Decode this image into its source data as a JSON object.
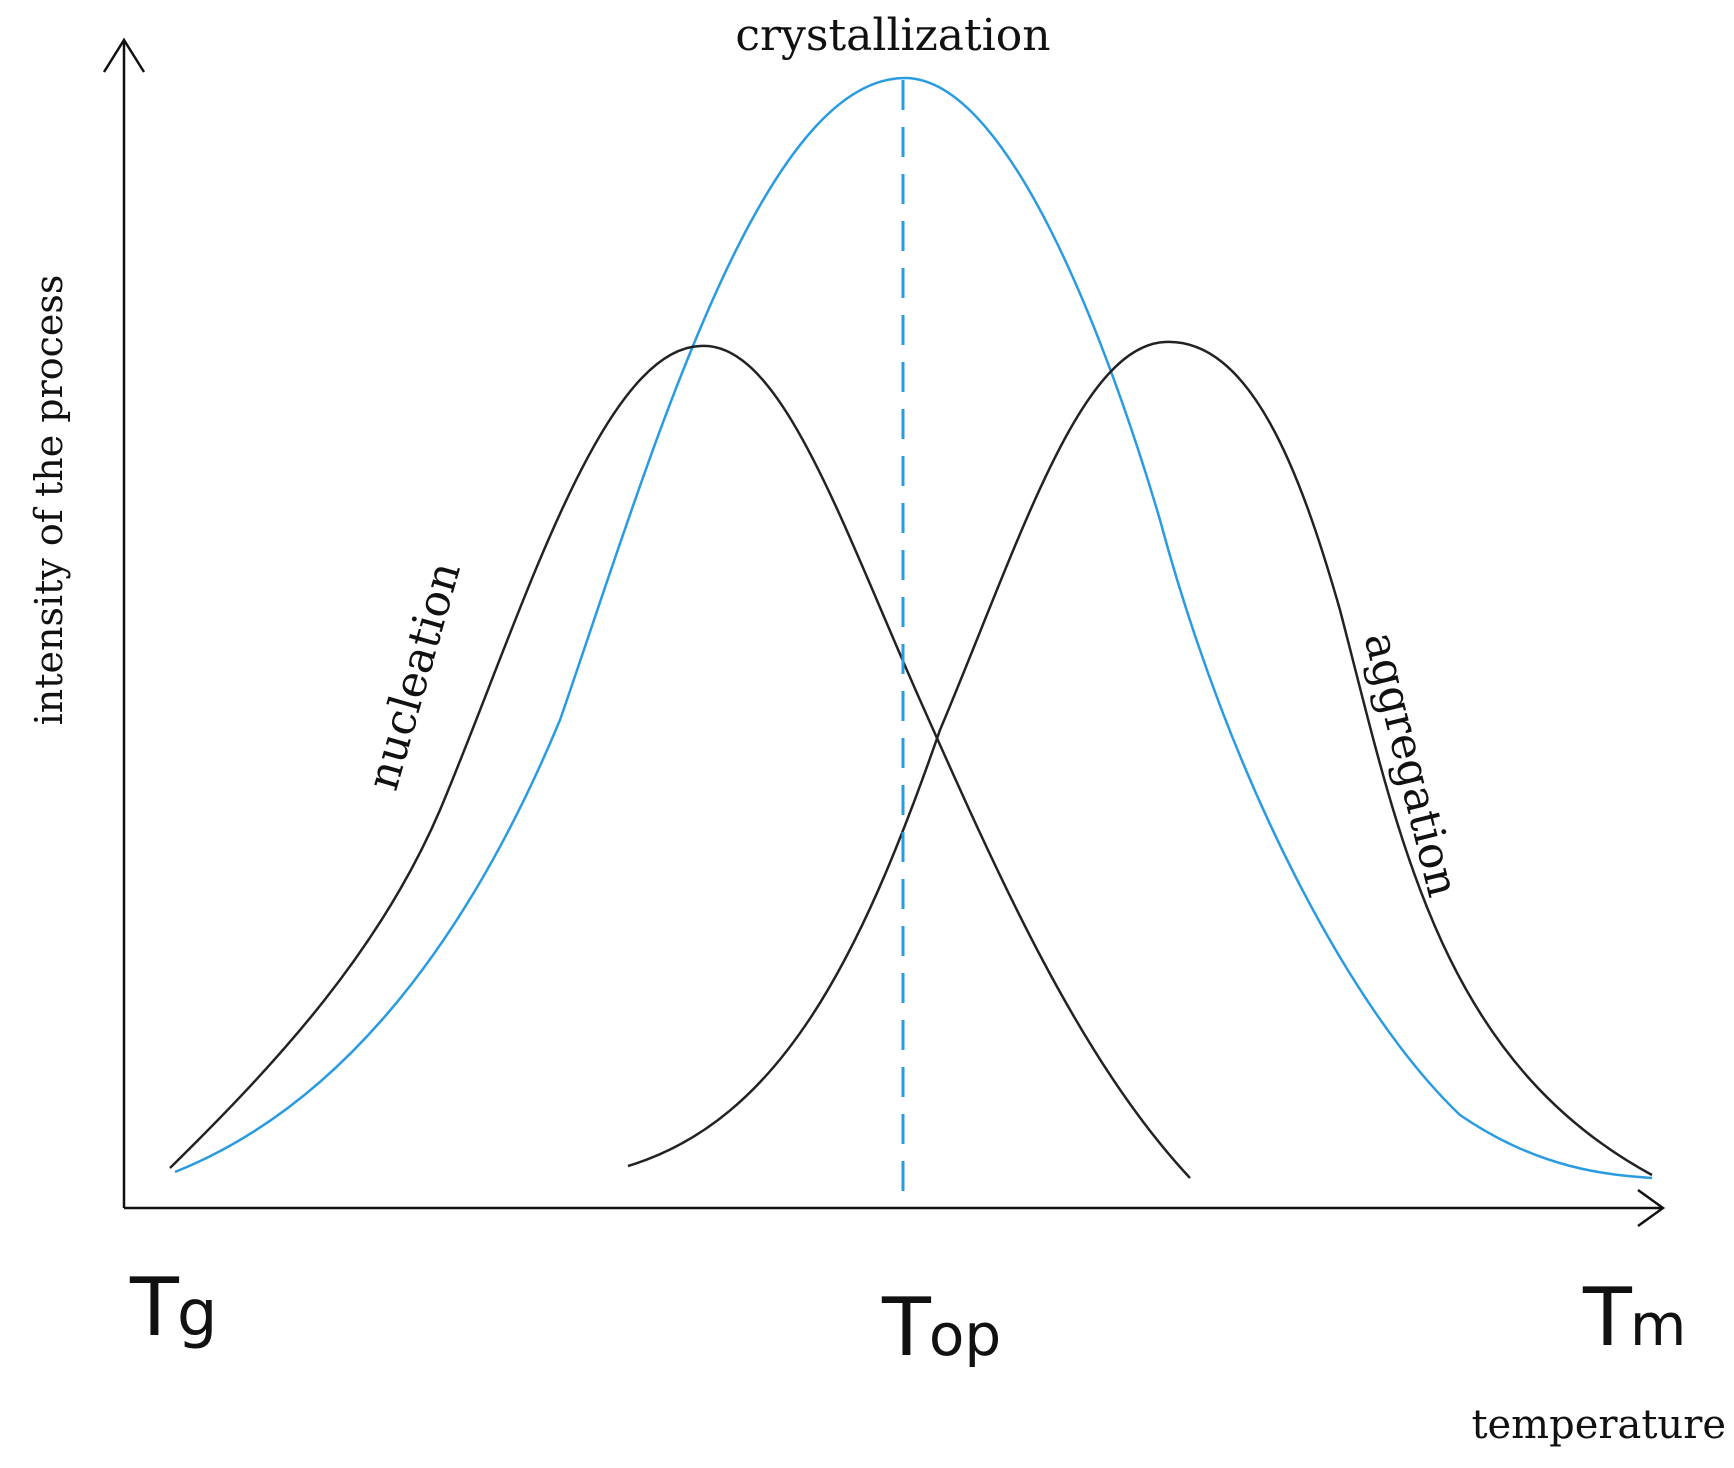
{
  "title": "crystallization",
  "y_axis_label": "intensity of the process",
  "x_axis_label": "temperature",
  "temperature_marks": {
    "tg": {
      "main": "T",
      "sub": "g"
    },
    "top": {
      "main": "T",
      "sub": "op"
    },
    "tm": {
      "main": "T",
      "sub": "m"
    }
  },
  "curve_labels": {
    "nucleation": "nucleation",
    "aggregation": "aggregation"
  },
  "colors": {
    "crystallization": "#2a9be0",
    "curves": "#222222",
    "axes": "#111111"
  }
}
